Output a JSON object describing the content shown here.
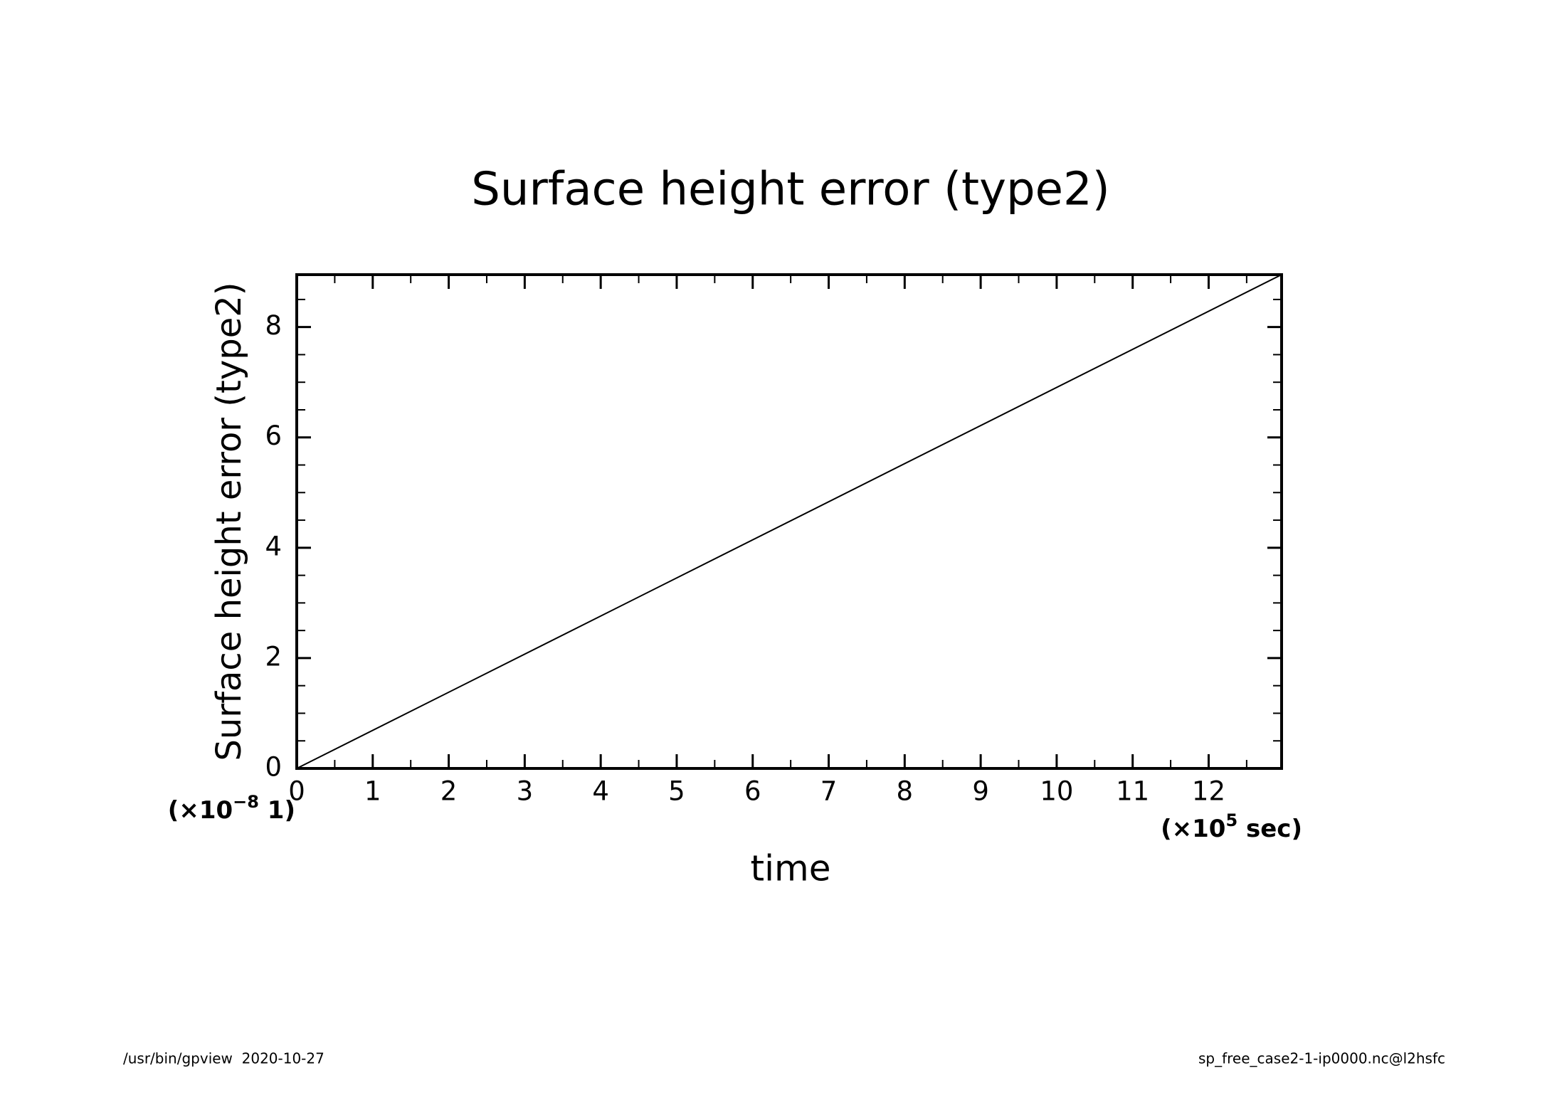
{
  "chart_data": {
    "type": "line",
    "title": "Surface height error (type2)",
    "x_label": "time",
    "y_label": "Surface height error (type2)",
    "x_unit_label": {
      "prefix": "(×10",
      "exponent": "5",
      "suffix": " sec)"
    },
    "y_unit_label": {
      "prefix": "(×10",
      "exponent": "−8",
      "suffix": " 1)"
    },
    "x": [
      0,
      12.96
    ],
    "series": [
      {
        "values": [
          0,
          8.95
        ],
        "color": "#000000"
      }
    ],
    "xlim": [
      0,
      12.96
    ],
    "ylim": [
      0,
      8.95
    ],
    "xticks": [
      0,
      1,
      2,
      3,
      4,
      5,
      6,
      7,
      8,
      9,
      10,
      11,
      12
    ],
    "xminorticks": [
      0.5,
      1.5,
      2.5,
      3.5,
      4.5,
      5.5,
      6.5,
      7.5,
      8.5,
      9.5,
      10.5,
      11.5,
      12.5
    ],
    "yticks": [
      0,
      2,
      4,
      6,
      8
    ],
    "yminorticks": [
      0.5,
      1,
      1.5,
      2.5,
      3,
      3.5,
      4.5,
      5,
      5.5,
      6.5,
      7,
      7.5,
      8.5
    ],
    "grid": false,
    "footer_left": "/usr/bin/gpview  2020-10-27",
    "footer_right": "sp_free_case2-1-ip0000.nc@l2hsfc"
  }
}
